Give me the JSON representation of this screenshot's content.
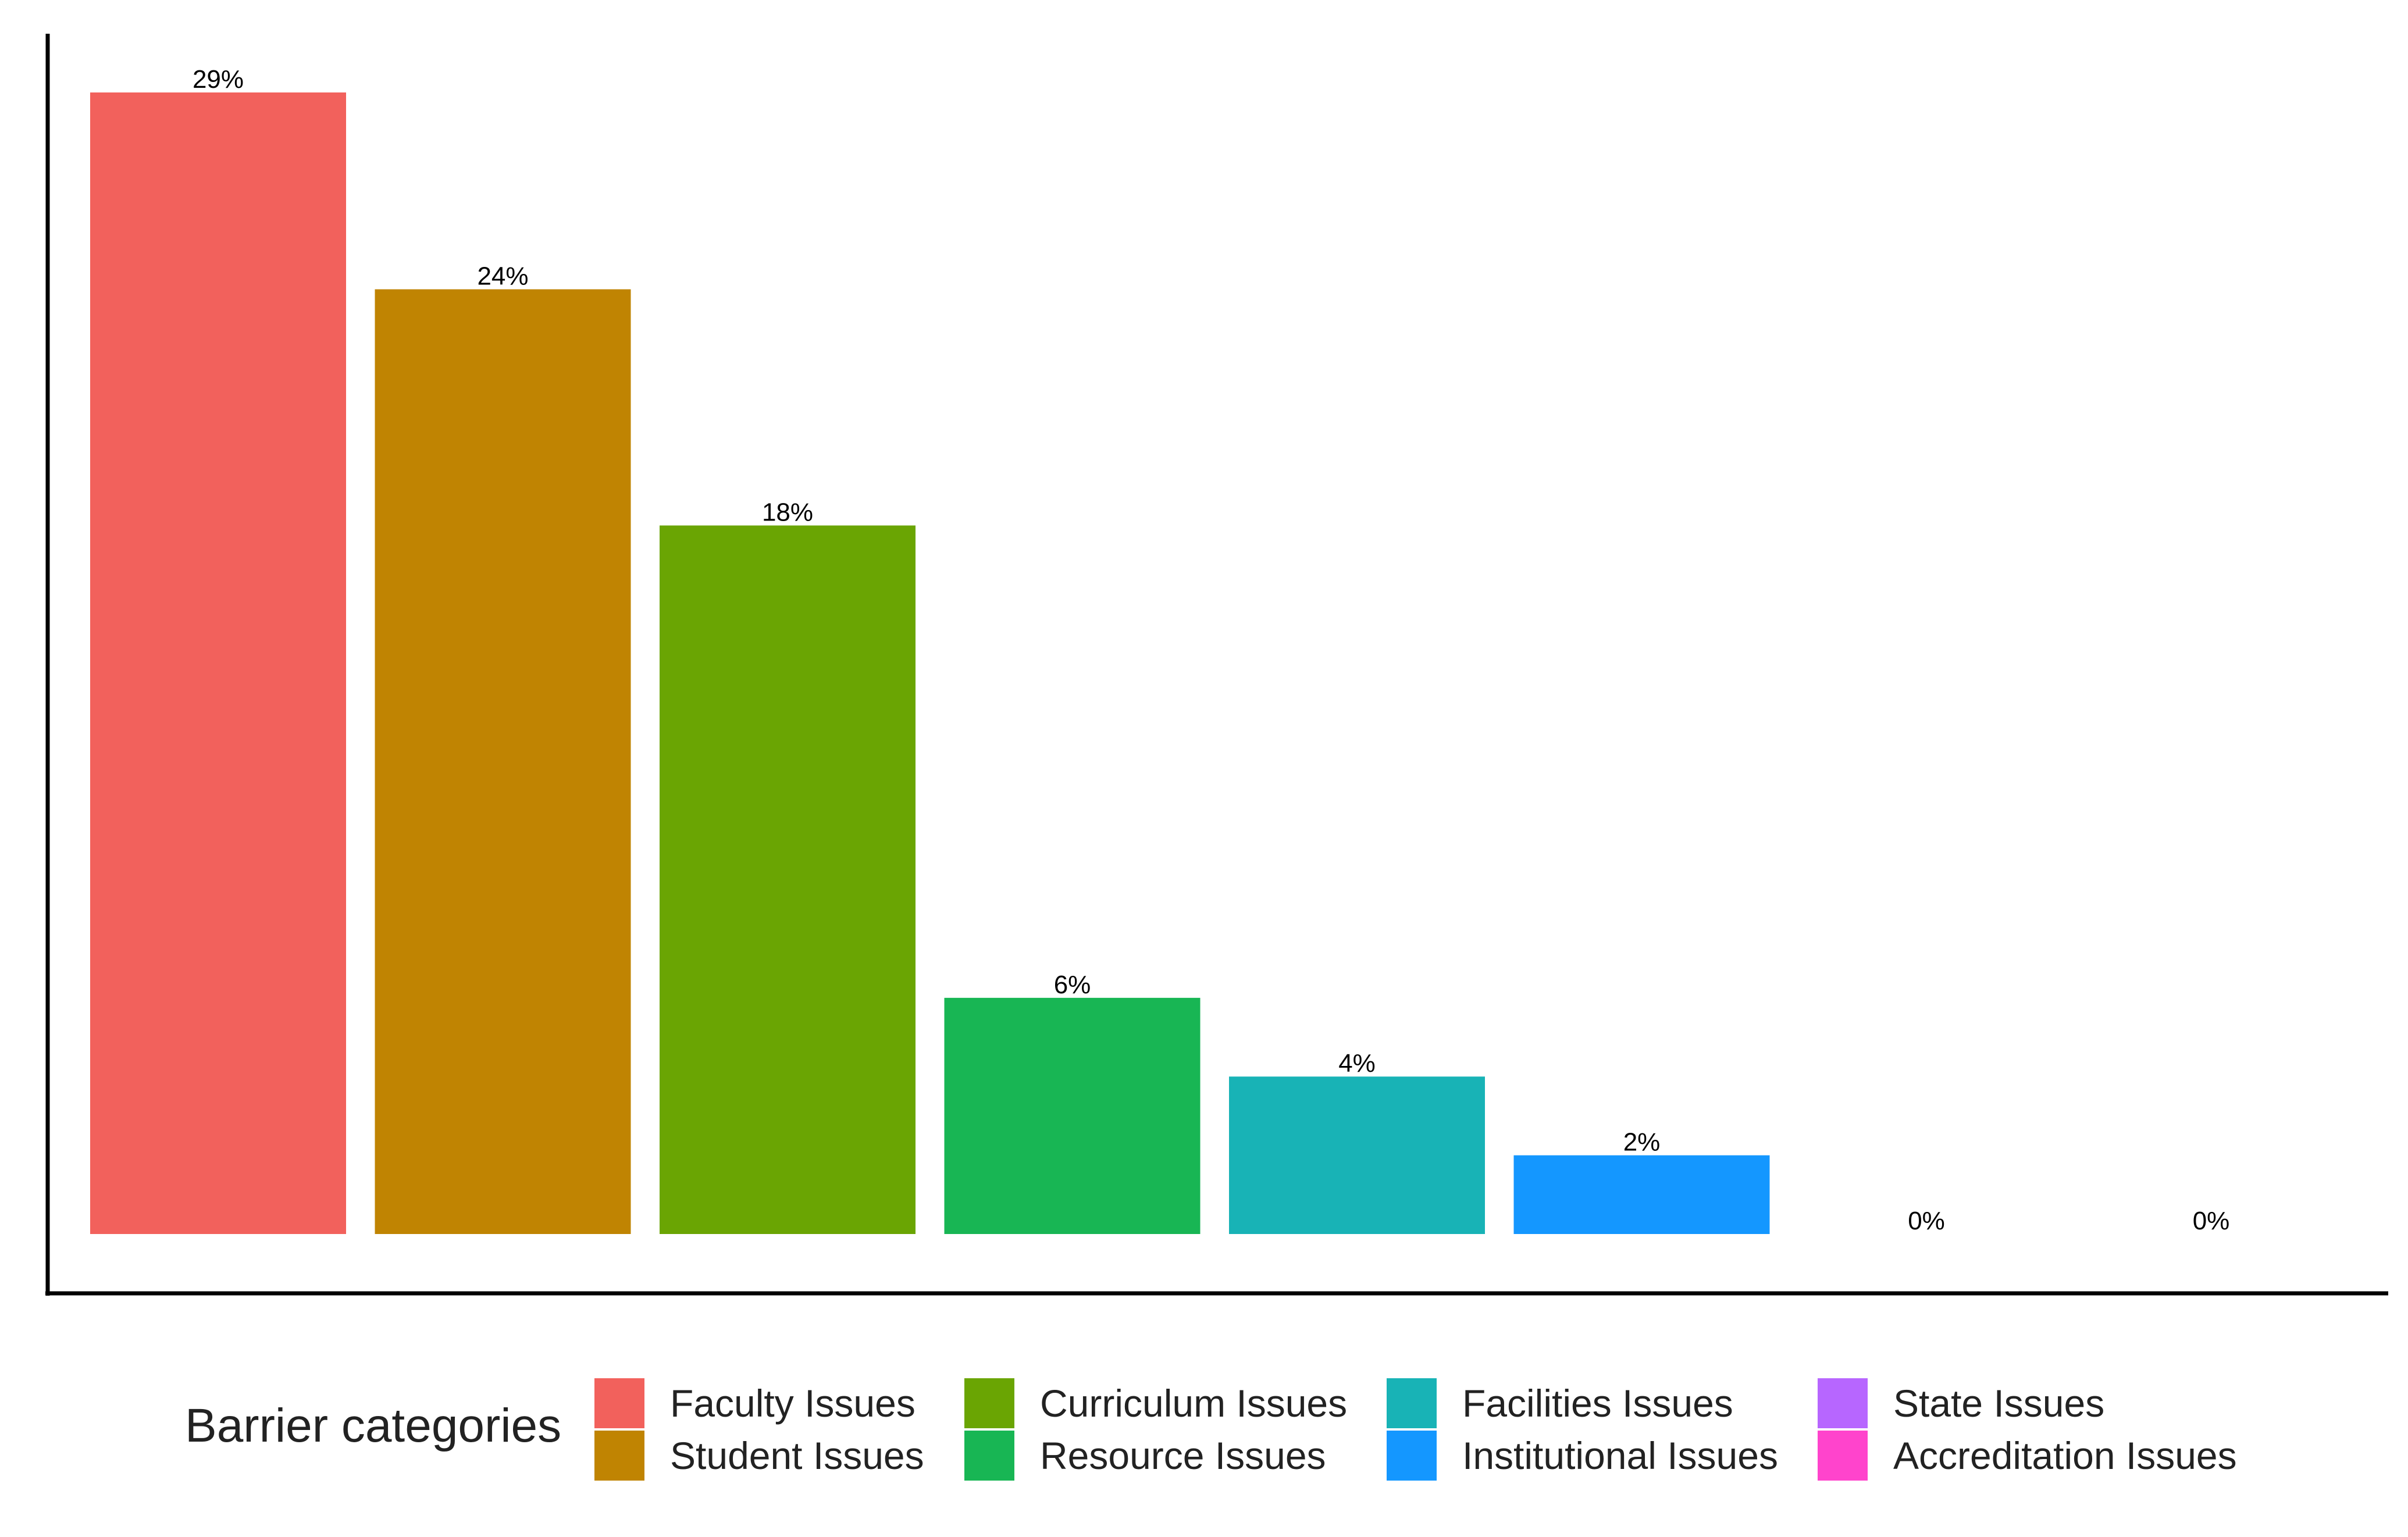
{
  "chart_data": {
    "type": "bar",
    "categories": [
      "Faculty Issues",
      "Student Issues",
      "Curriculum Issues",
      "Resource Issues",
      "Facilities Issues",
      "Institutional Issues",
      "State Issues",
      "Accreditation Issues"
    ],
    "values": [
      29,
      24,
      18,
      6,
      4,
      2,
      0,
      0
    ],
    "value_labels": [
      "29%",
      "24%",
      "18%",
      "6%",
      "4%",
      "2%",
      "0%",
      "0%"
    ],
    "colors": [
      "#F2615C",
      "#C08402",
      "#6AA503",
      "#18B654",
      "#18B3B6",
      "#1497FF",
      "#B766FF",
      "#FF44CC"
    ],
    "title": "",
    "xlabel": "",
    "ylabel": "",
    "ylim": [
      0,
      31
    ],
    "grid": false,
    "axes": [
      "left",
      "bottom"
    ],
    "legend": {
      "title": "Barrier categories",
      "position": "bottom"
    }
  }
}
